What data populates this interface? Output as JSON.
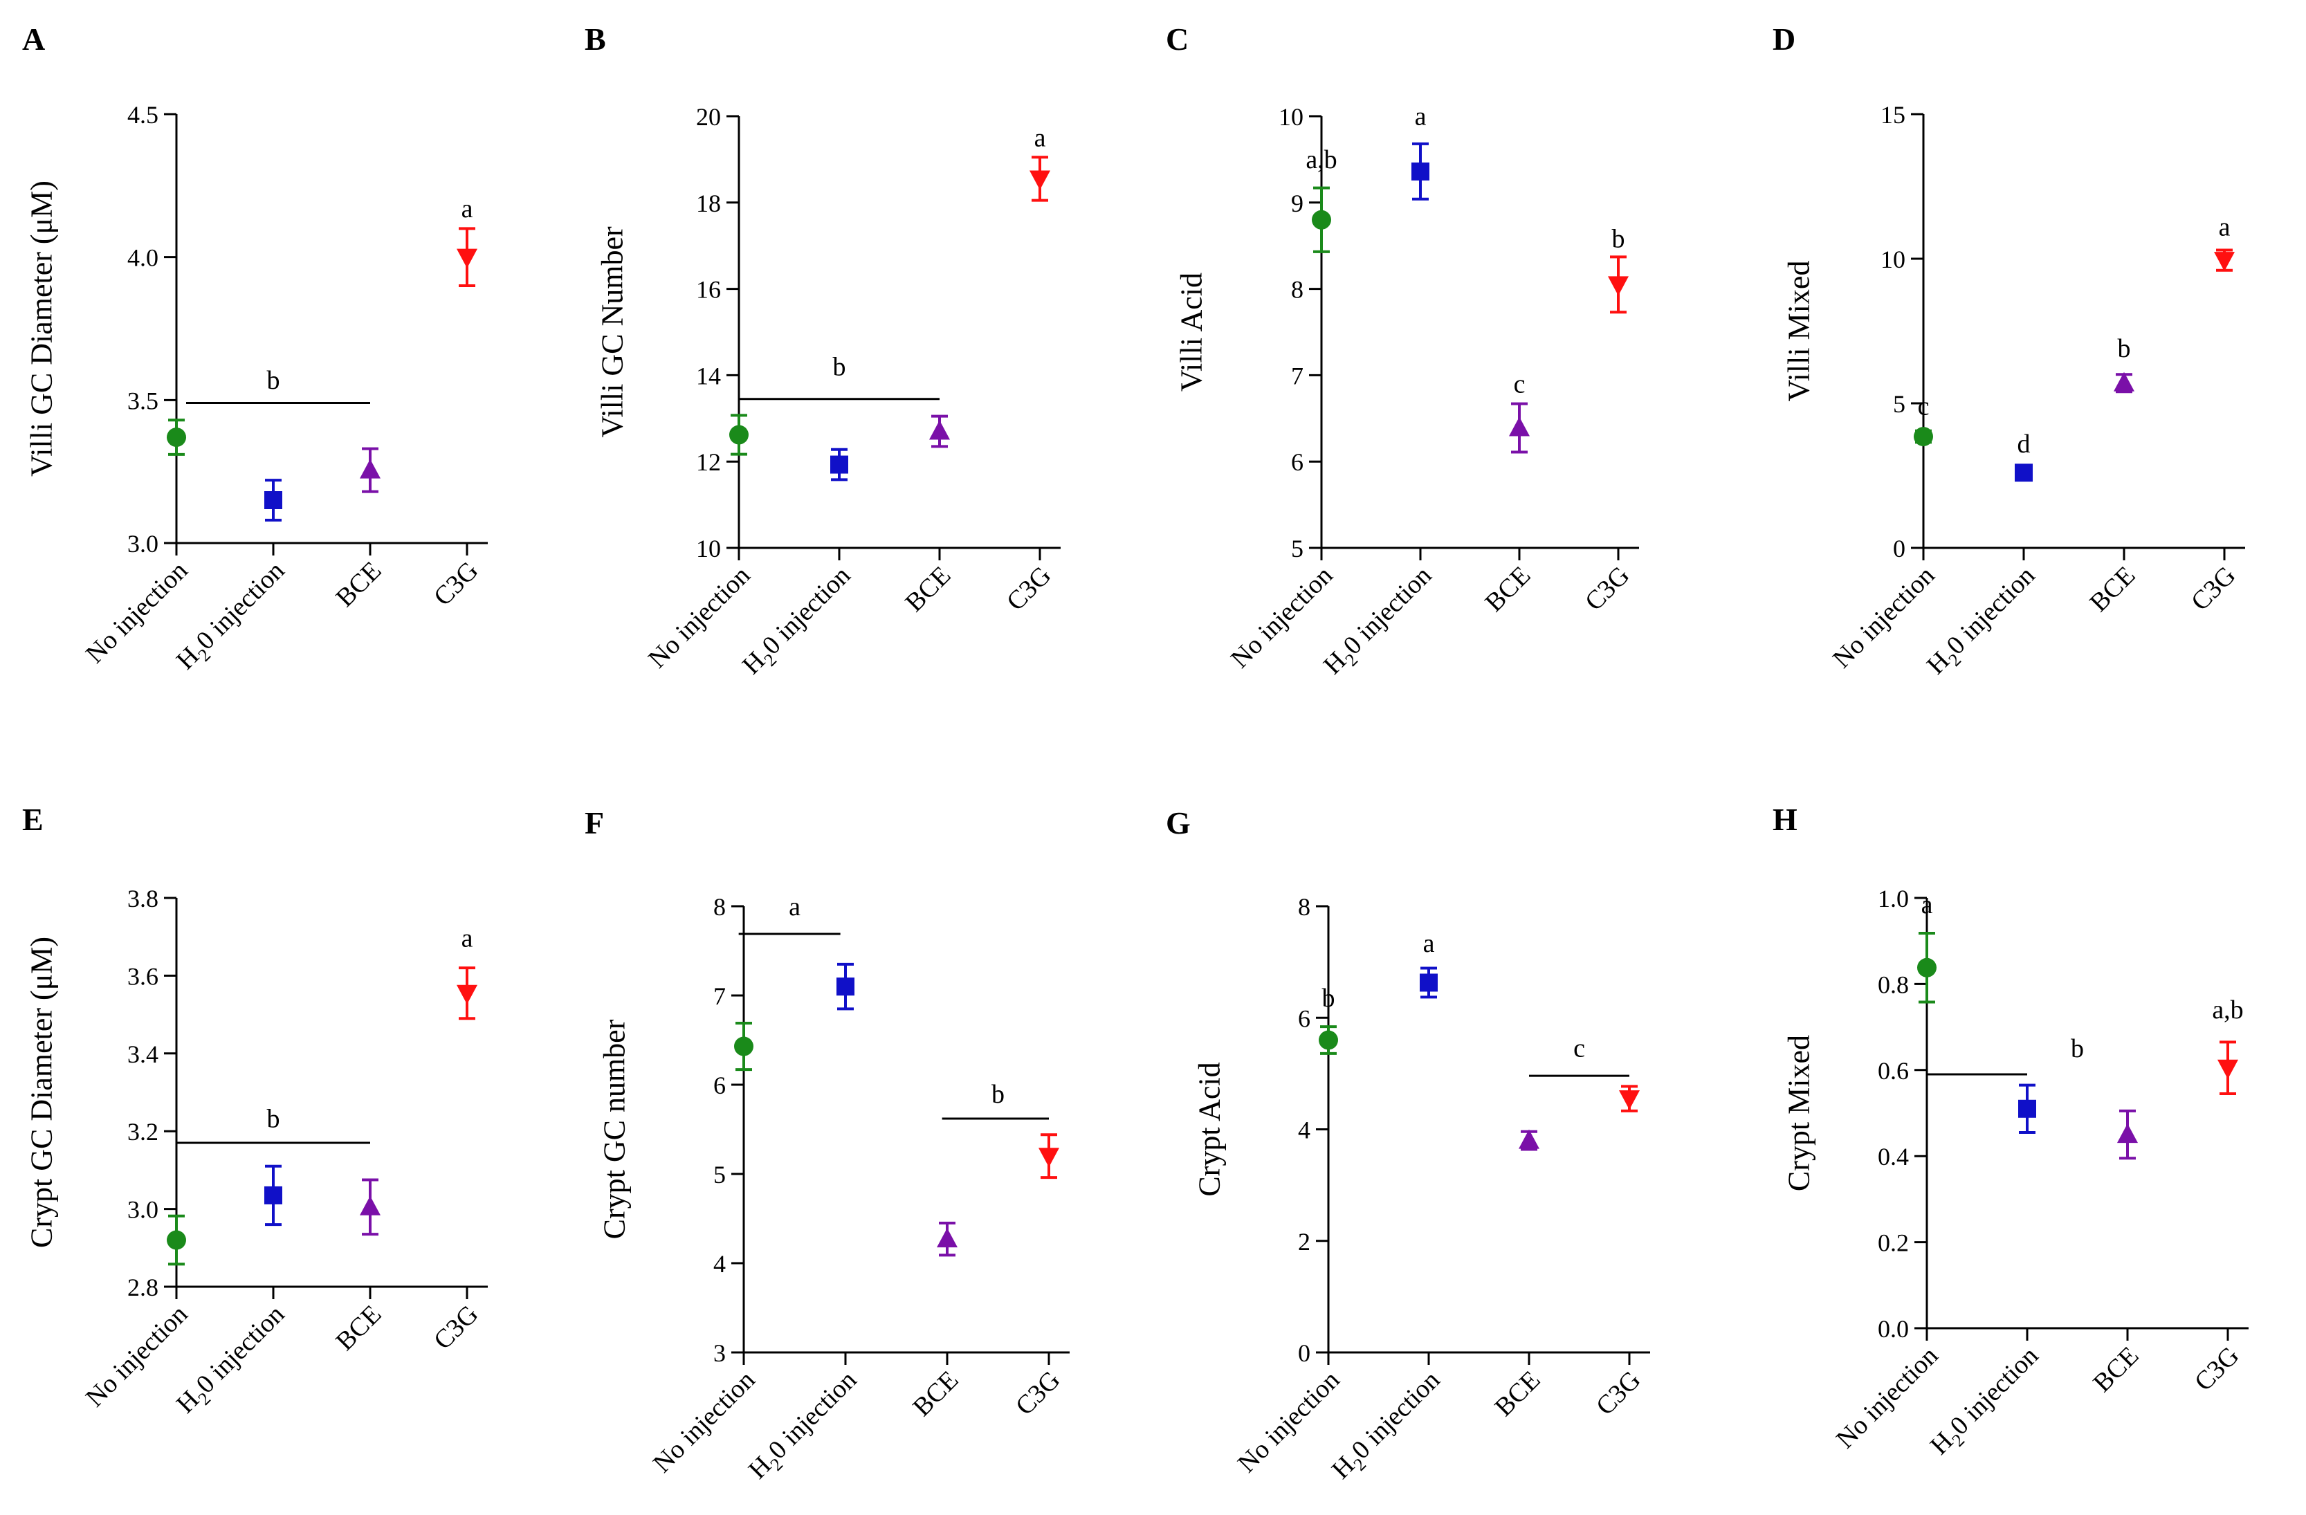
{
  "colors": {
    "no_injection": "#1a8a1a",
    "h2o_injection": "#1010c8",
    "bce": "#7a10a8",
    "c3g": "#ff1010"
  },
  "markers": {
    "no_injection": "circle",
    "h2o_injection": "square",
    "bce": "triangle-up",
    "c3g": "triangle-down"
  },
  "chart_data": [
    {
      "type": "scatter",
      "panel": "A",
      "ylabel": "Villi GC Diameter (μM)",
      "ylim": [
        3.0,
        4.5
      ],
      "ticks": [
        "3.0",
        "3.5",
        "4.0",
        "4.5"
      ],
      "categories": [
        "No injection",
        "H",
        "BCE",
        "C3G"
      ],
      "means": [
        3.37,
        3.15,
        3.255,
        4.0
      ],
      "errors": [
        0.06,
        0.07,
        0.075,
        0.1
      ],
      "labels": [
        {
          "text": "a",
          "x": 3,
          "y": 4.14
        },
        {
          "text": "b",
          "x": 1.0,
          "y": 3.54
        }
      ],
      "lines": [
        {
          "x1": 0.1,
          "x2": 2.0,
          "y": 3.49
        }
      ]
    },
    {
      "type": "scatter",
      "panel": "B",
      "ylabel": "Villi GC Number",
      "ylim": [
        10,
        20
      ],
      "ticks": [
        "10",
        "12",
        "14",
        "16",
        "18",
        "20"
      ],
      "categories": [
        "No injection",
        "H",
        "BCE",
        "C3G"
      ],
      "means": [
        12.62,
        11.93,
        12.7,
        18.55
      ],
      "errors": [
        0.45,
        0.35,
        0.35,
        0.5
      ],
      "labels": [
        {
          "text": "a",
          "x": 3,
          "y": 19.3
        },
        {
          "text": "b",
          "x": 1.0,
          "y": 14.0
        }
      ],
      "lines": [
        {
          "x1": 0.0,
          "x2": 2.0,
          "y": 13.45
        }
      ]
    },
    {
      "type": "scatter",
      "panel": "C",
      "ylabel": "Villi Acid",
      "ylim": [
        5,
        10
      ],
      "ticks": [
        "5",
        "6",
        "7",
        "8",
        "9",
        "10"
      ],
      "categories": [
        "No injection",
        "H",
        "BCE",
        "C3G"
      ],
      "means": [
        8.8,
        9.36,
        6.39,
        8.05
      ],
      "errors": [
        0.37,
        0.32,
        0.28,
        0.32
      ],
      "labels": [
        {
          "text": "a,b",
          "x": 0,
          "y": 9.4
        },
        {
          "text": "a",
          "x": 1,
          "y": 9.9
        },
        {
          "text": "c",
          "x": 2,
          "y": 6.8
        },
        {
          "text": "b",
          "x": 3,
          "y": 8.48
        }
      ],
      "lines": []
    },
    {
      "type": "scatter",
      "panel": "D",
      "ylabel": "Villi Mixed",
      "ylim": [
        0,
        15
      ],
      "ticks": [
        "0",
        "5",
        "10",
        "15"
      ],
      "categories": [
        "No injection",
        "H",
        "BCE",
        "C3G"
      ],
      "means": [
        3.85,
        2.6,
        5.7,
        9.95
      ],
      "errors": [
        0.2,
        0.1,
        0.3,
        0.35
      ],
      "labels": [
        {
          "text": "c",
          "x": 0,
          "y": 4.6
        },
        {
          "text": "d",
          "x": 1,
          "y": 3.3
        },
        {
          "text": "b",
          "x": 2,
          "y": 6.6
        },
        {
          "text": "a",
          "x": 3,
          "y": 10.8
        }
      ],
      "lines": []
    },
    {
      "type": "scatter",
      "panel": "E",
      "ylabel": "Crypt GC Diameter (μM)",
      "ylim": [
        2.8,
        3.8
      ],
      "ticks": [
        "2.8",
        "3.0",
        "3.2",
        "3.4",
        "3.6",
        "3.8"
      ],
      "categories": [
        "No injection",
        "H",
        "BCE",
        "C3G"
      ],
      "means": [
        2.92,
        3.035,
        3.005,
        3.555
      ],
      "errors": [
        0.062,
        0.075,
        0.07,
        0.065
      ],
      "labels": [
        {
          "text": "a",
          "x": 3,
          "y": 3.675
        },
        {
          "text": "b",
          "x": 1.0,
          "y": 3.21
        }
      ],
      "lines": [
        {
          "x1": 0.0,
          "x2": 2.0,
          "y": 3.17
        }
      ]
    },
    {
      "type": "scatter",
      "panel": "F",
      "ylabel": "Crypt GC number",
      "ylim": [
        3,
        8
      ],
      "ticks": [
        "3",
        "4",
        "5",
        "6",
        "7",
        "8"
      ],
      "categories": [
        "No injection",
        "H",
        "BCE",
        "C3G"
      ],
      "means": [
        6.43,
        7.1,
        4.27,
        5.2
      ],
      "errors": [
        0.26,
        0.25,
        0.18,
        0.24
      ],
      "labels": [
        {
          "text": "a",
          "x": 0.5,
          "y": 7.9
        },
        {
          "text": "b",
          "x": 2.5,
          "y": 5.8
        }
      ],
      "lines": [
        {
          "x1": -0.05,
          "x2": 0.95,
          "y": 7.69
        },
        {
          "x1": 1.95,
          "x2": 3.0,
          "y": 5.62
        }
      ]
    },
    {
      "type": "scatter",
      "panel": "G",
      "ylabel": "Crypt Acid",
      "ylim": [
        0,
        8
      ],
      "ticks": [
        "0",
        "2",
        "4",
        "6",
        "8"
      ],
      "categories": [
        "No injection",
        "H",
        "BCE",
        "C3G"
      ],
      "means": [
        5.6,
        6.63,
        3.8,
        4.55
      ],
      "errors": [
        0.24,
        0.26,
        0.16,
        0.22
      ],
      "labels": [
        {
          "text": "b",
          "x": 0,
          "y": 6.2
        },
        {
          "text": "a",
          "x": 1,
          "y": 7.18
        },
        {
          "text": "c",
          "x": 2.5,
          "y": 5.3
        }
      ],
      "lines": [
        {
          "x1": 2.0,
          "x2": 3.0,
          "y": 4.96
        }
      ]
    },
    {
      "type": "scatter",
      "panel": "H",
      "ylabel": "Crypt Mixed",
      "ylim": [
        0.0,
        1.0
      ],
      "ticks": [
        "0.0",
        "0.2",
        "0.4",
        "0.6",
        "0.8",
        "1.0"
      ],
      "categories": [
        "No injection",
        "H",
        "BCE",
        "C3G"
      ],
      "means": [
        0.838,
        0.51,
        0.45,
        0.605
      ],
      "errors": [
        0.08,
        0.055,
        0.055,
        0.06
      ],
      "labels": [
        {
          "text": "a",
          "x": 0,
          "y": 0.965
        },
        {
          "text": "b",
          "x": 1.5,
          "y": 0.63
        },
        {
          "text": "a,b",
          "x": 3,
          "y": 0.72
        }
      ],
      "lines": [
        {
          "x1": 0.0,
          "x2": 1.0,
          "y": 0.59
        }
      ]
    }
  ],
  "xlabel_parts": {
    "h2o_prefix": "H",
    "h2o_sub": "2",
    "h2o_suffix": "0 injection"
  }
}
